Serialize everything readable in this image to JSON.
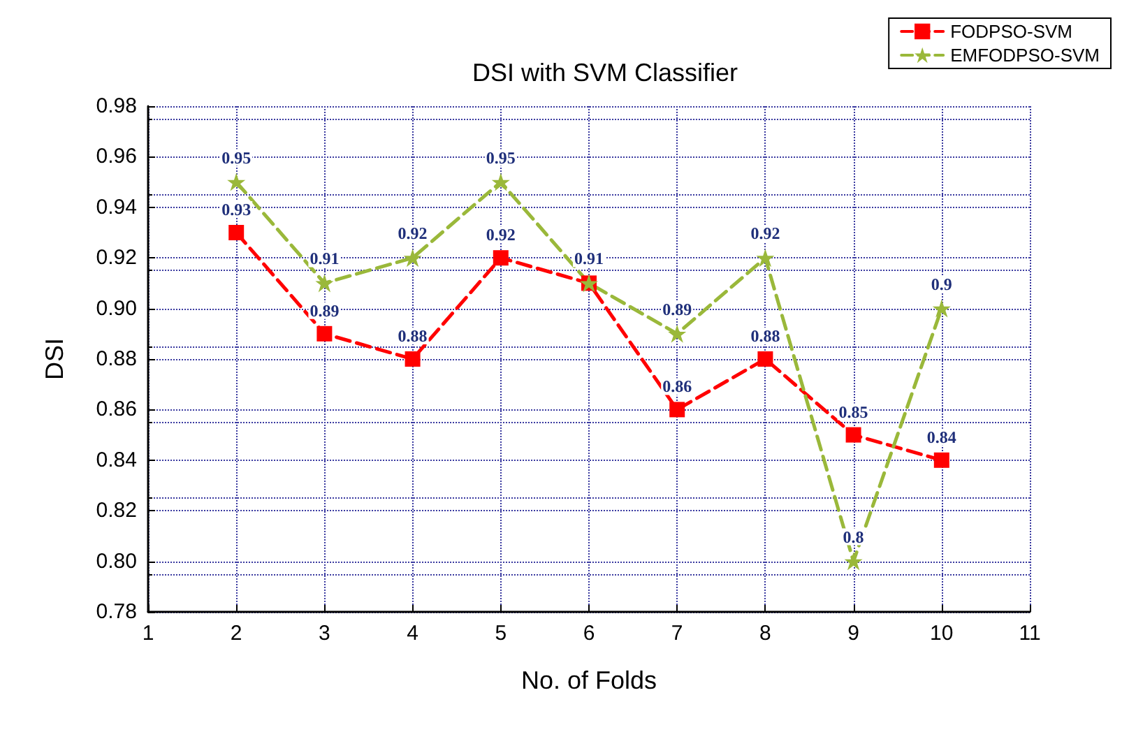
{
  "chart_data": {
    "type": "line",
    "title": "DSI with SVM Classifier",
    "xlabel": "No. of Folds",
    "ylabel": "DSI",
    "x": [
      2,
      3,
      4,
      5,
      6,
      7,
      8,
      9,
      10
    ],
    "series": [
      {
        "name": "FODPSO-SVM",
        "color": "#ff0000",
        "marker": "square",
        "values": [
          0.93,
          0.89,
          0.88,
          0.92,
          0.91,
          0.86,
          0.88,
          0.85,
          0.84
        ],
        "value_labels": [
          "0.93",
          "0.89",
          "0.88",
          "0.92",
          null,
          "0.86",
          "0.88",
          "0.85",
          "0.84"
        ]
      },
      {
        "name": "EMFODPSO-SVM",
        "color": "#9ab83a",
        "marker": "star",
        "values": [
          0.95,
          0.91,
          0.92,
          0.95,
          0.91,
          0.89,
          0.92,
          0.8,
          0.9
        ],
        "value_labels": [
          "0.95",
          "0.91",
          "0.92",
          "0.95",
          "0.91",
          "0.89",
          "0.92",
          "0.8",
          "0.9"
        ]
      }
    ],
    "xlim": [
      1,
      11
    ],
    "xticks": [
      1,
      2,
      3,
      4,
      5,
      6,
      7,
      8,
      9,
      10,
      11
    ],
    "ylim": [
      0.78,
      0.98
    ],
    "yticks": [
      {
        "value": 0.78,
        "label": "0.78"
      },
      {
        "value": 0.8,
        "label": "0.80"
      },
      {
        "value": 0.82,
        "label": "0.82"
      },
      {
        "value": 0.84,
        "label": "0.84"
      },
      {
        "value": 0.86,
        "label": "0.86"
      },
      {
        "value": 0.88,
        "label": "0.88"
      },
      {
        "value": 0.9,
        "label": "0.90"
      },
      {
        "value": 0.92,
        "label": "0.92"
      },
      {
        "value": 0.94,
        "label": "0.94"
      },
      {
        "value": 0.96,
        "label": "0.96"
      },
      {
        "value": 0.98,
        "label": "0.98"
      }
    ],
    "grid": true,
    "legend": "top right",
    "line_style": "dashed"
  }
}
